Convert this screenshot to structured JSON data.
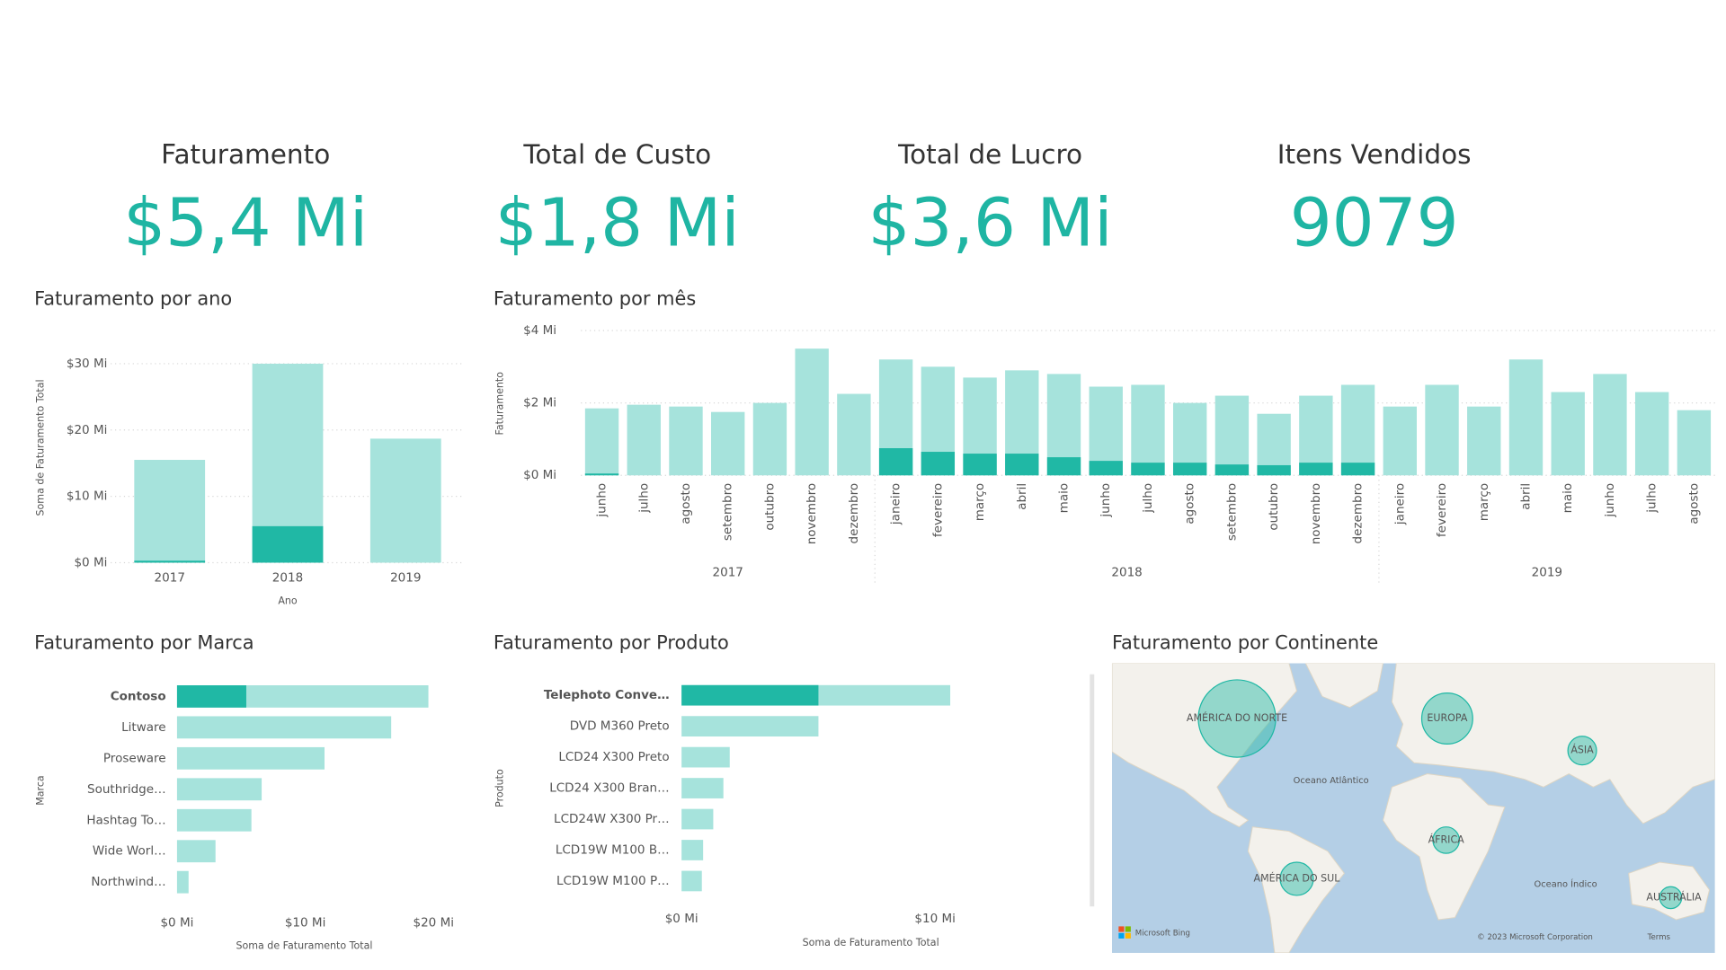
{
  "kpis": [
    {
      "label": "Faturamento",
      "value": {
        "value": 5.4,
        "label": "$5,4 Mi"
      }
    },
    {
      "label": "Total de Custo",
      "value": {
        "value": 1.8,
        "label": "$1,8 Mi"
      }
    },
    {
      "label": "Total de Lucro",
      "value": {
        "value": 3.6,
        "label": "$3,6 Mi"
      }
    },
    {
      "label": "Itens Vendidos",
      "value": 9079
    }
  ],
  "chart_data": [
    {
      "type": "bar",
      "title": "Faturamento por ano",
      "x_title": "Ano",
      "y_title": "Soma de Faturamento Total",
      "categories": [
        "2017",
        "2018",
        "2019"
      ],
      "series": [
        {
          "color": "#a6e3dc",
          "values": [
            15.5,
            30,
            18.7
          ]
        },
        {
          "color": "#20b8a5",
          "values": [
            0.3,
            5.5,
            0
          ]
        }
      ],
      "overlay": true,
      "ylim": [
        0,
        32
      ],
      "yticks": [
        {
          "value": 0,
          "label": "$0 Mi"
        },
        {
          "value": 10,
          "label": "$10 Mi"
        },
        {
          "value": 20,
          "label": "$20 Mi"
        },
        {
          "value": 30,
          "label": "$30 Mi"
        }
      ],
      "grid": true
    },
    {
      "type": "bar",
      "title": "Faturamento por mês",
      "y_title": "Faturamento",
      "groups": [
        {
          "label": "2017",
          "categories": [
            "junho",
            "julho",
            "agosto",
            "setembro",
            "outubro",
            "novembro",
            "dezembro"
          ]
        },
        {
          "label": "2018",
          "categories": [
            "janeiro",
            "fevereiro",
            "março",
            "abril",
            "maio",
            "junho",
            "julho",
            "agosto",
            "setembro",
            "outubro",
            "novembro",
            "dezembro"
          ]
        },
        {
          "label": "2019",
          "categories": [
            "janeiro",
            "fevereiro",
            "março",
            "abril",
            "maio",
            "junho",
            "julho",
            "agosto"
          ]
        }
      ],
      "series": [
        {
          "color": "#a6e3dc",
          "values": [
            1.85,
            1.95,
            1.9,
            1.75,
            2.0,
            3.5,
            2.25,
            3.2,
            3.0,
            2.7,
            2.9,
            2.8,
            2.45,
            2.5,
            2.0,
            2.2,
            1.7,
            2.2,
            2.5,
            1.9,
            2.5,
            1.9,
            3.2,
            2.3,
            2.8,
            2.3,
            1.8
          ]
        },
        {
          "color": "#20b8a5",
          "values": [
            0.05,
            0,
            0,
            0,
            0,
            0,
            0,
            0.75,
            0.65,
            0.6,
            0.6,
            0.5,
            0.4,
            0.35,
            0.35,
            0.3,
            0.28,
            0.35,
            0.35,
            0,
            0,
            0,
            0,
            0,
            0,
            0,
            0
          ]
        }
      ],
      "overlay": true,
      "ylim": [
        0,
        4
      ],
      "yticks": [
        {
          "value": 0,
          "label": "$0 Mi"
        },
        {
          "value": 2,
          "label": "$2 Mi"
        },
        {
          "value": 4,
          "label": "$4 Mi"
        }
      ],
      "grid": true
    },
    {
      "type": "hbar",
      "title": "Faturamento por Marca",
      "x_title": "Soma de Faturamento Total",
      "y_title": "Marca",
      "categories": [
        "Contoso",
        "Litware",
        "Proseware",
        "Southridge…",
        "Hashtag To…",
        "Wide Worl…",
        "Northwind…"
      ],
      "series": [
        {
          "color": "#a6e3dc",
          "values": [
            19.6,
            16.7,
            11.5,
            6.6,
            5.8,
            3.0,
            0.9
          ]
        },
        {
          "color": "#20b8a5",
          "values": [
            5.4,
            0,
            0,
            0,
            0,
            0,
            0
          ]
        }
      ],
      "overlay": true,
      "xlim": [
        0,
        22
      ],
      "xticks": [
        {
          "value": 0,
          "label": "$0 Mi"
        },
        {
          "value": 10,
          "label": "$10 Mi"
        },
        {
          "value": 20,
          "label": "$20 Mi"
        }
      ],
      "grid": false
    },
    {
      "type": "hbar",
      "title": "Faturamento por Produto",
      "x_title": "Soma de Faturamento Total",
      "y_title": "Produto",
      "categories": [
        "Telephoto Conve…",
        "DVD M360 Preto",
        "LCD24 X300 Preto",
        "LCD24 X300 Bran…",
        "LCD24W X300 Pr…",
        "LCD19W M100 B…",
        "LCD19W M100 P…"
      ],
      "series": [
        {
          "color": "#a6e3dc",
          "values": [
            10.6,
            5.4,
            1.9,
            1.65,
            1.25,
            0.85,
            0.8
          ]
        },
        {
          "color": "#20b8a5",
          "values": [
            5.4,
            0,
            0,
            0,
            0,
            0,
            0
          ]
        }
      ],
      "overlay": true,
      "xlim": [
        0,
        11
      ],
      "xticks": [
        {
          "value": 0,
          "label": "$0 Mi"
        },
        {
          "value": 10,
          "label": "$10 Mi"
        }
      ],
      "grid": false
    },
    {
      "type": "map",
      "title": "Faturamento por Continente",
      "categories": [
        "AMÉRICA DO NORTE",
        "EUROPA",
        "ÁSIA",
        "ÁFRICA",
        "AMÉRICA DO SUL",
        "AUSTRÁLIA"
      ],
      "values": [
        30,
        13,
        4.1,
        3.5,
        5.5,
        2.4
      ],
      "color": "#20b8a5",
      "annotations": [
        "Oceano Atlântico",
        "Oceano Índico",
        "Microsoft Bing",
        "© 2023 Microsoft Corporation",
        "Terms"
      ]
    }
  ]
}
